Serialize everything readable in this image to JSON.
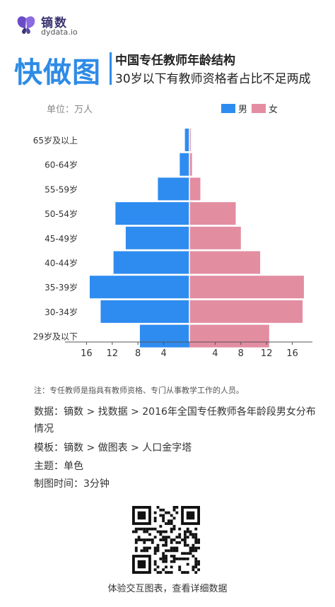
{
  "logo": {
    "name": "镝数",
    "url": "dydata.io"
  },
  "brand": "快做图",
  "title_line1": "中国专任教师年龄结构",
  "title_line2": "30岁以下有教师资格者占比不足两成",
  "chart_data": {
    "type": "bar",
    "orientation": "horizontal-pyramid",
    "unit_label": "单位：万人",
    "categories": [
      "65岁及以上",
      "60-64岁",
      "55-59岁",
      "50-54岁",
      "45-49岁",
      "40-44岁",
      "35-39岁",
      "30-34岁",
      "29岁及以下"
    ],
    "series": [
      {
        "name": "男",
        "color": "#2e8cf0",
        "side": "left",
        "values": [
          0.7,
          1.5,
          4.9,
          11.5,
          9.9,
          11.8,
          15.5,
          13.8,
          7.7
        ]
      },
      {
        "name": "女",
        "color": "#e38da1",
        "side": "right",
        "values": [
          0.2,
          0.4,
          1.7,
          7.2,
          8.0,
          11.0,
          17.8,
          17.6,
          12.4
        ]
      }
    ],
    "x_ticks_left": [
      16,
      12,
      8,
      4
    ],
    "x_ticks_right": [
      4,
      8,
      12,
      16
    ],
    "xlim": [
      0,
      18
    ],
    "legend_position": "top-right",
    "grid": false
  },
  "note": "注：专任教师是指具有教师资格、专门从事教学工作的人员。",
  "meta": {
    "data_source": "数据：镝数 > 找数据 > 2016年全国专任教师各年龄段男女分布情况",
    "template": "模板：镝数 > 做图表 > 人口金字塔",
    "theme": "主题：单色",
    "time": "制图时间：3分钟"
  },
  "cta": "体验交互图表，查看详细数据"
}
